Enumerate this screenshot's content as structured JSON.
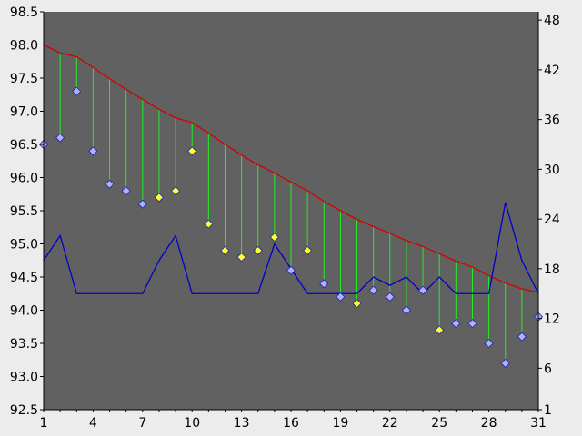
{
  "chart_data": {
    "type": "line",
    "x": [
      1,
      2,
      3,
      4,
      5,
      6,
      7,
      8,
      9,
      10,
      11,
      12,
      13,
      14,
      15,
      16,
      17,
      18,
      19,
      20,
      21,
      22,
      23,
      24,
      25,
      26,
      27,
      28,
      29,
      30,
      31
    ],
    "x_ticks": [
      1,
      4,
      7,
      10,
      13,
      16,
      19,
      22,
      25,
      28,
      31
    ],
    "y_left_ticks": [
      "92.5",
      "93.0",
      "93.5",
      "94.0",
      "94.5",
      "95.0",
      "95.5",
      "96.0",
      "96.5",
      "97.0",
      "97.5",
      "98.0",
      "98.5"
    ],
    "y_right_ticks": [
      "1",
      "6",
      "12",
      "18",
      "24",
      "30",
      "36",
      "42",
      "48"
    ],
    "ylim_left": [
      92.5,
      98.5
    ],
    "ylim_right": [
      1,
      49
    ],
    "grid": false,
    "colors": {
      "background": "#ececec",
      "plot_area": "#616161",
      "upper_line": "#d40000",
      "drop_lines": "#22ee22",
      "right_axis_line": "#0000c8",
      "marker_blue": "#b0b0ff",
      "marker_yellow": "#ffff33",
      "marker_stroke": "#2222aa"
    },
    "series": [
      {
        "axis": "left",
        "style": "line",
        "values": [
          98.0,
          97.88,
          97.82,
          97.66,
          97.49,
          97.33,
          97.18,
          97.03,
          96.9,
          96.83,
          96.67,
          96.5,
          96.34,
          96.19,
          96.07,
          95.93,
          95.8,
          95.64,
          95.5,
          95.37,
          95.26,
          95.16,
          95.05,
          94.96,
          94.85,
          94.74,
          94.65,
          94.52,
          94.41,
          94.32,
          94.27
        ]
      },
      {
        "axis": "left",
        "style": "markers",
        "values": [
          96.5,
          96.6,
          97.3,
          96.4,
          95.9,
          95.8,
          95.6,
          95.7,
          95.8,
          96.4,
          95.3,
          94.9,
          94.8,
          94.9,
          95.1,
          94.6,
          94.9,
          94.4,
          94.2,
          94.1,
          94.3,
          94.2,
          94.0,
          94.3,
          93.7,
          93.8,
          93.8,
          93.5,
          93.2,
          93.6,
          93.9
        ],
        "marker_colors": [
          "blue",
          "blue",
          "blue",
          "blue",
          "blue",
          "blue",
          "blue",
          "yellow",
          "yellow",
          "yellow",
          "yellow",
          "yellow",
          "yellow",
          "yellow",
          "yellow",
          "blue",
          "yellow",
          "blue",
          "blue",
          "yellow",
          "blue",
          "blue",
          "blue",
          "blue",
          "yellow",
          "blue",
          "blue",
          "blue",
          "blue",
          "blue",
          "blue"
        ]
      },
      {
        "axis": "right",
        "style": "line",
        "values": [
          19,
          22,
          15,
          15,
          15,
          15,
          15,
          19,
          22,
          15,
          15,
          15,
          15,
          15,
          21,
          18,
          15,
          15,
          15,
          15,
          17,
          16,
          17,
          15,
          17,
          15,
          15,
          15,
          26,
          19,
          15
        ]
      }
    ]
  }
}
